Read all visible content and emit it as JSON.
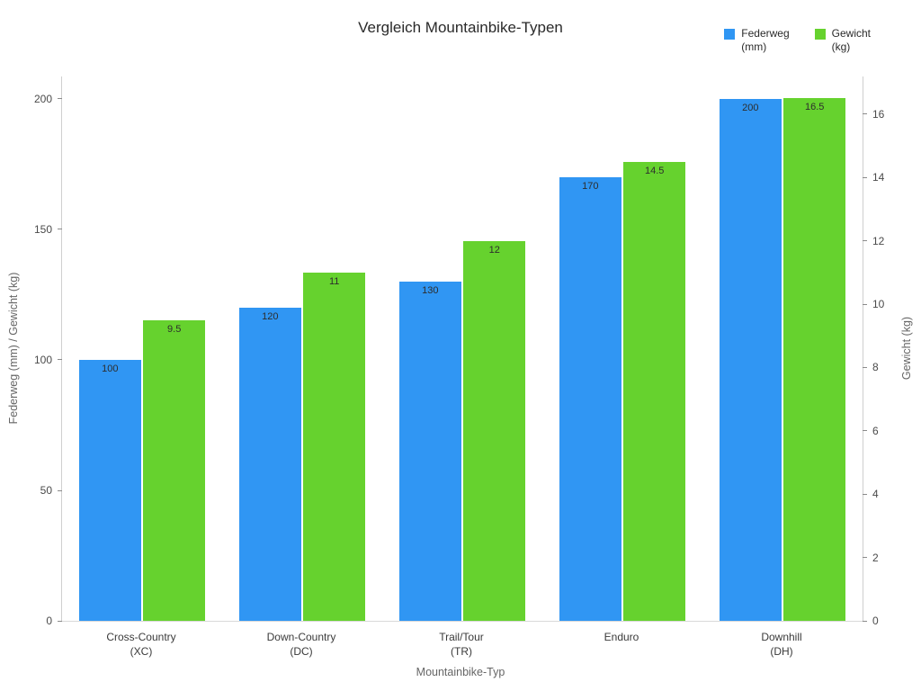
{
  "title": "Vergleich Mountainbike-Typen",
  "chart_data": {
    "type": "bar",
    "title": "Vergleich Mountainbike-Typen",
    "xlabel": "Mountainbike-Typ",
    "ylabel_left": "Federweg (mm) / Gewicht (kg)",
    "ylabel_right": "Gewicht (kg)",
    "categories": [
      [
        "Cross-Country",
        "(XC)"
      ],
      [
        "Down-Country",
        "(DC)"
      ],
      [
        "Trail/Tour",
        "(TR)"
      ],
      [
        "Enduro"
      ],
      [
        "Downhill",
        "(DH)"
      ]
    ],
    "series": [
      {
        "name": "Federweg (mm)",
        "legend_lines": [
          "Federweg",
          "(mm)"
        ],
        "color": "#3096f3",
        "axis": "left",
        "values": [
          100,
          120,
          130,
          170,
          200
        ]
      },
      {
        "name": "Gewicht (kg)",
        "legend_lines": [
          "Gewicht",
          "(kg)"
        ],
        "color": "#66d22e",
        "axis": "right",
        "values": [
          9.5,
          11,
          12,
          14.5,
          16.5
        ]
      }
    ],
    "left_ticks": [
      0,
      50,
      100,
      150,
      200
    ],
    "right_ticks": [
      0,
      2,
      4,
      6,
      8,
      10,
      12,
      14,
      16
    ],
    "left_max": 208.6,
    "right_max": 17.19,
    "legend_position": "top-right",
    "grid": false
  }
}
